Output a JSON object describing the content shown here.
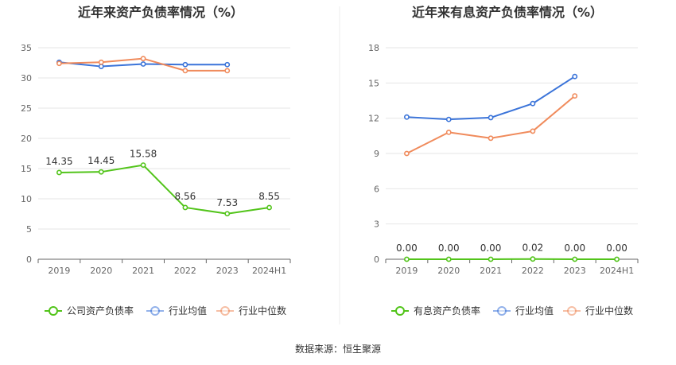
{
  "colors": {
    "company": "#52c41a",
    "industry_avg": "#3b74d9",
    "industry_median": "#f08b5c",
    "grid": "#e6e6e6",
    "axis": "#666666"
  },
  "source_text": "数据来源：恒生聚源",
  "chart_data": [
    {
      "type": "line",
      "title": "近年来资产负债率情况（%）",
      "categories": [
        "2019",
        "2020",
        "2021",
        "2022",
        "2023",
        "2024H1"
      ],
      "ylim": [
        0,
        35
      ],
      "yticks": [
        0,
        5,
        10,
        15,
        20,
        25,
        30,
        35
      ],
      "grid": true,
      "legend_position": "bottom",
      "series": [
        {
          "name": "公司资产负债率",
          "color_key": "company",
          "values": [
            14.35,
            14.45,
            15.58,
            8.56,
            7.53,
            8.55
          ],
          "labels": [
            "14.35",
            "14.45",
            "15.58",
            "8.56",
            "7.53",
            "8.55"
          ]
        },
        {
          "name": "行业均值",
          "color_key": "industry_avg",
          "values": [
            32.6,
            31.9,
            32.3,
            32.2,
            32.2,
            null
          ]
        },
        {
          "name": "行业中位数",
          "color_key": "industry_median",
          "values": [
            32.4,
            32.6,
            33.2,
            31.2,
            31.2,
            null
          ]
        }
      ]
    },
    {
      "type": "line",
      "title": "近年来有息资产负债率情况（%）",
      "categories": [
        "2019",
        "2020",
        "2021",
        "2022",
        "2023",
        "2024H1"
      ],
      "ylim": [
        0,
        18
      ],
      "yticks": [
        0,
        3,
        6,
        9,
        12,
        15,
        18
      ],
      "grid": true,
      "legend_position": "bottom",
      "series": [
        {
          "name": "有息资产负债率",
          "color_key": "company",
          "values": [
            0.0,
            0.0,
            0.0,
            0.02,
            0.0,
            0.0
          ],
          "labels": [
            "0.00",
            "0.00",
            "0.00",
            "0.02",
            "0.00",
            "0.00"
          ]
        },
        {
          "name": "行业均值",
          "color_key": "industry_avg",
          "values": [
            12.1,
            11.9,
            12.05,
            13.25,
            15.55,
            null
          ]
        },
        {
          "name": "行业中位数",
          "color_key": "industry_median",
          "values": [
            9.0,
            10.8,
            10.3,
            10.9,
            13.9,
            null
          ]
        }
      ]
    }
  ]
}
